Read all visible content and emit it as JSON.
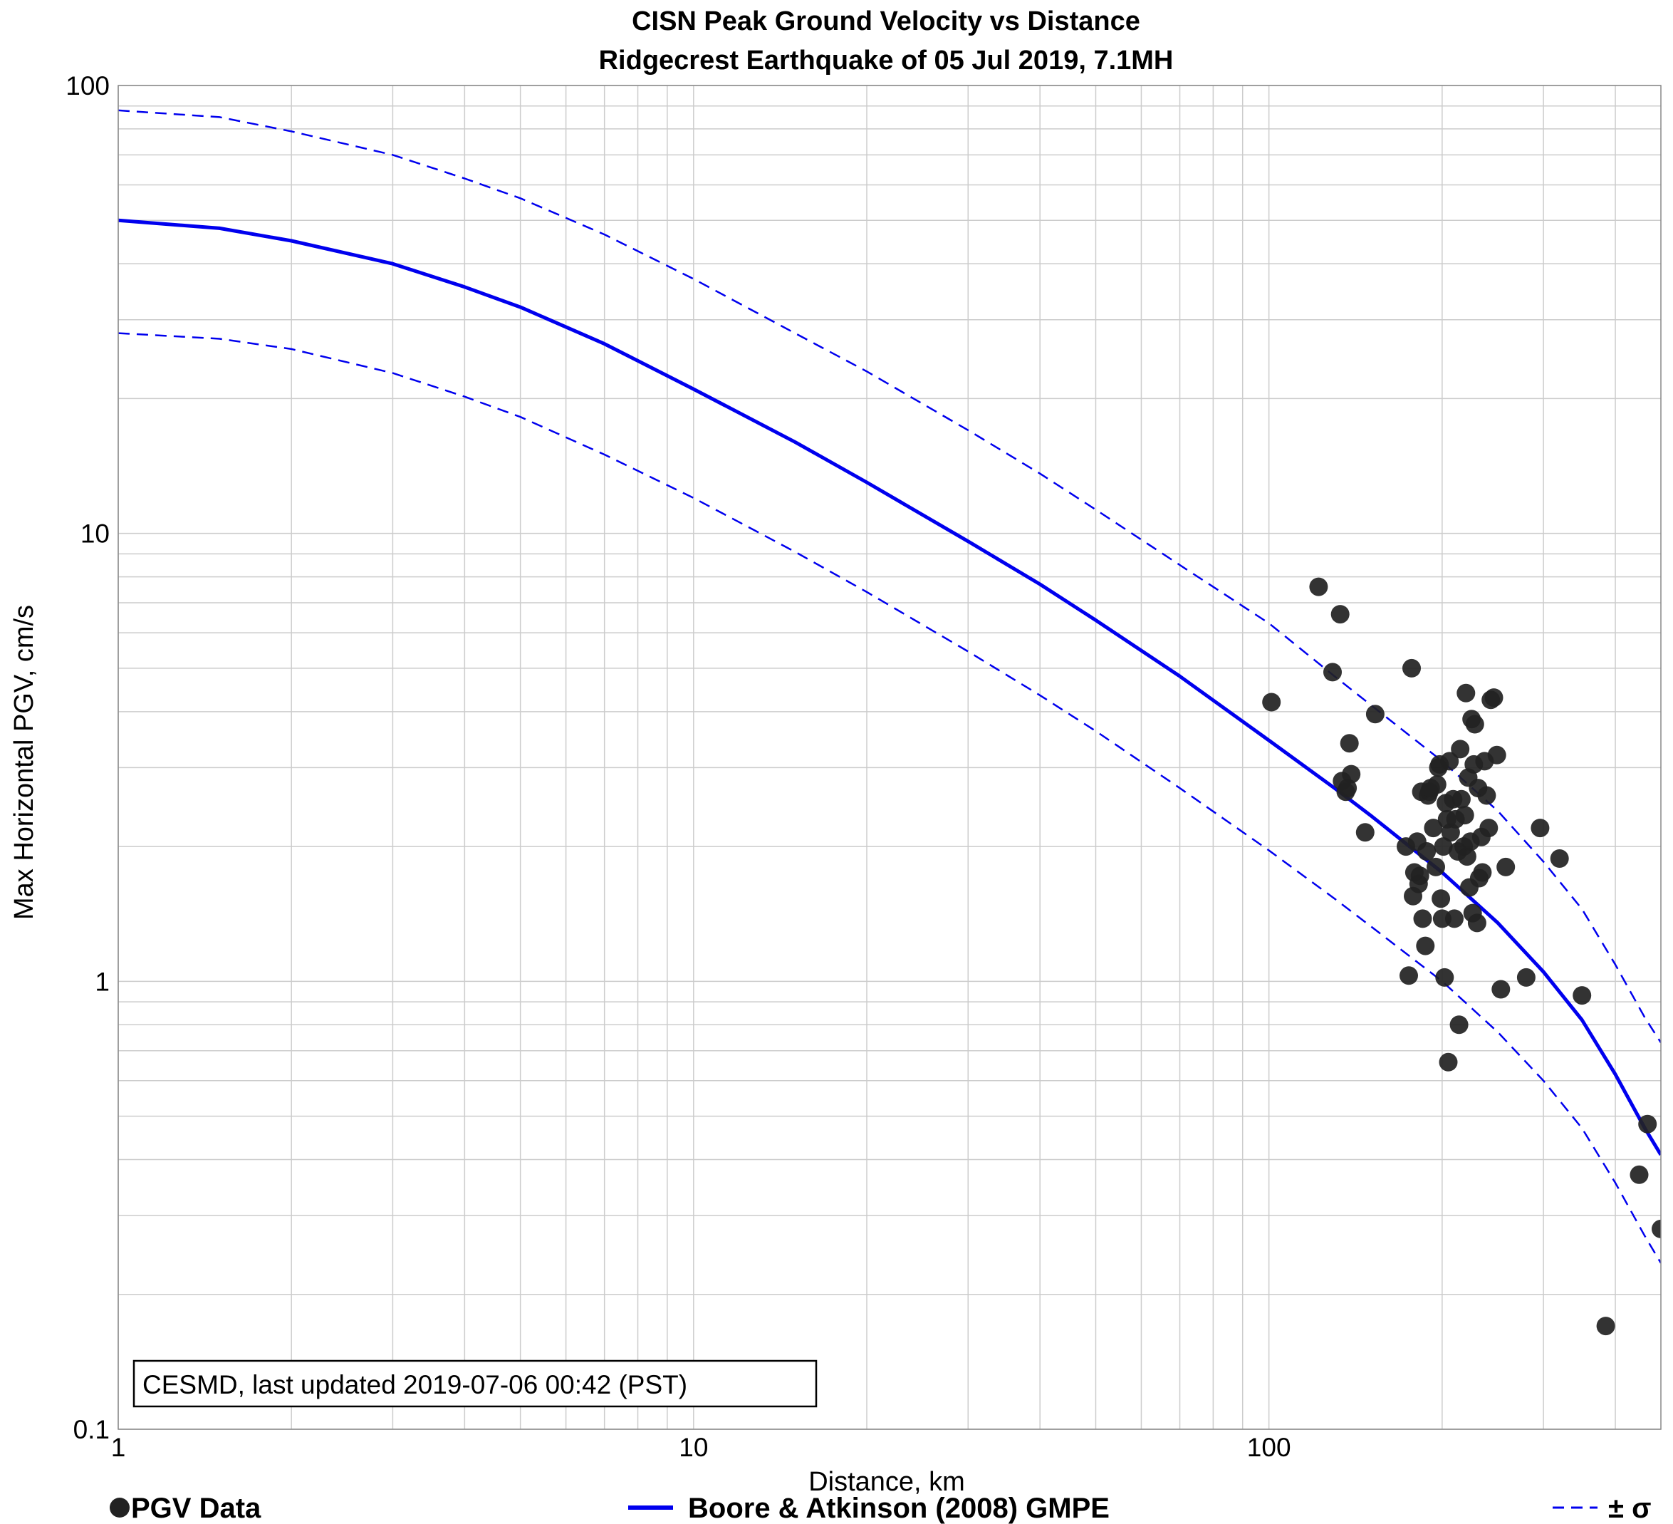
{
  "chart_data": {
    "type": "scatter",
    "title": "CISN Peak Ground Velocity vs Distance",
    "subtitle": "Ridgecrest Earthquake of 05 Jul 2019, 7.1MH",
    "xlabel": "Distance, km",
    "ylabel": "Max Horizontal PGV, cm/s",
    "xscale": "log",
    "yscale": "log",
    "xlim": [
      1,
      480
    ],
    "ylim": [
      0.1,
      100
    ],
    "grid": true,
    "x_ticks": [
      1,
      10,
      100
    ],
    "x_tick_labels": [
      "1",
      "10",
      "100"
    ],
    "y_ticks": [
      0.1,
      1,
      10,
      100
    ],
    "y_tick_labels": [
      "0.1",
      "1",
      "10",
      "100"
    ],
    "annotation": "CESMD, last updated 2019-07-06 00:42 (PST)",
    "legend": {
      "placement": "bottom",
      "entries": [
        {
          "label": "PGV Data",
          "type": "marker"
        },
        {
          "label": "Boore & Atkinson (2008) GMPE",
          "type": "line"
        },
        {
          "label": "± σ",
          "type": "dashed"
        }
      ]
    },
    "colors": {
      "data": "#222222",
      "gmpe": "#0000ee",
      "sigma": "#0000ee",
      "grid": "#cccccc"
    },
    "series": [
      {
        "name": "Boore & Atkinson (2008) GMPE",
        "kind": "line",
        "x": [
          1,
          1.5,
          2,
          3,
          4,
          5,
          7,
          10,
          15,
          20,
          30,
          40,
          50,
          70,
          100,
          130,
          150,
          200,
          250,
          300,
          350,
          400,
          450,
          480
        ],
        "y": [
          50,
          48,
          45,
          40,
          35.5,
          32,
          26.5,
          21,
          16,
          13,
          9.6,
          7.7,
          6.4,
          4.8,
          3.45,
          2.7,
          2.35,
          1.75,
          1.35,
          1.05,
          0.82,
          0.62,
          0.47,
          0.41
        ]
      },
      {
        "name": "+σ",
        "kind": "dashed",
        "x": [
          1,
          1.5,
          2,
          3,
          4,
          5,
          7,
          10,
          15,
          20,
          30,
          40,
          50,
          70,
          100,
          130,
          150,
          200,
          250,
          300,
          350,
          400,
          450,
          480
        ],
        "y": [
          88,
          85,
          79,
          70,
          62,
          56,
          46.5,
          37,
          28,
          23,
          17,
          13.6,
          11.3,
          8.5,
          6.3,
          4.8,
          4.15,
          3.1,
          2.4,
          1.85,
          1.45,
          1.09,
          0.83,
          0.73
        ]
      },
      {
        "name": "-σ",
        "kind": "dashed",
        "x": [
          1,
          1.5,
          2,
          3,
          4,
          5,
          7,
          10,
          15,
          20,
          30,
          40,
          50,
          70,
          100,
          130,
          150,
          200,
          250,
          300,
          350,
          400,
          450,
          480
        ],
        "y": [
          28,
          27.2,
          25.8,
          22.8,
          20.2,
          18.2,
          15,
          12,
          9.1,
          7.4,
          5.45,
          4.35,
          3.62,
          2.7,
          1.96,
          1.53,
          1.33,
          1.0,
          0.77,
          0.6,
          0.47,
          0.355,
          0.27,
          0.235
        ]
      },
      {
        "name": "PGV Data",
        "kind": "scatter",
        "points": [
          [
            101,
            4.2
          ],
          [
            122,
            7.6
          ],
          [
            129,
            4.9
          ],
          [
            133,
            6.6
          ],
          [
            134,
            2.8
          ],
          [
            136,
            2.65
          ],
          [
            137,
            2.7
          ],
          [
            138,
            3.4
          ],
          [
            139,
            2.9
          ],
          [
            147,
            2.15
          ],
          [
            153,
            3.95
          ],
          [
            173,
            2.0
          ],
          [
            175,
            1.03
          ],
          [
            177,
            5.0
          ],
          [
            178,
            1.55
          ],
          [
            179,
            1.75
          ],
          [
            181,
            2.05
          ],
          [
            182,
            1.65
          ],
          [
            183,
            1.72
          ],
          [
            184,
            2.65
          ],
          [
            185,
            1.38
          ],
          [
            187,
            1.2
          ],
          [
            188,
            1.95
          ],
          [
            189,
            2.6
          ],
          [
            190,
            2.65
          ],
          [
            191,
            2.7
          ],
          [
            193,
            2.2
          ],
          [
            195,
            1.8
          ],
          [
            196,
            2.75
          ],
          [
            197,
            3.0
          ],
          [
            198,
            3.05
          ],
          [
            199,
            1.53
          ],
          [
            200,
            1.38
          ],
          [
            201,
            2.0
          ],
          [
            202,
            1.02
          ],
          [
            203,
            2.5
          ],
          [
            204,
            2.3
          ],
          [
            205,
            0.66
          ],
          [
            206,
            3.1
          ],
          [
            207,
            2.15
          ],
          [
            209,
            2.55
          ],
          [
            210,
            1.38
          ],
          [
            211,
            2.3
          ],
          [
            213,
            1.95
          ],
          [
            214,
            0.8
          ],
          [
            215,
            3.3
          ],
          [
            216,
            2.55
          ],
          [
            218,
            2.0
          ],
          [
            219,
            2.35
          ],
          [
            220,
            4.4
          ],
          [
            221,
            1.9
          ],
          [
            222,
            2.85
          ],
          [
            223,
            1.62
          ],
          [
            224,
            2.05
          ],
          [
            225,
            3.85
          ],
          [
            226,
            1.42
          ],
          [
            227,
            3.05
          ],
          [
            228,
            3.75
          ],
          [
            230,
            1.35
          ],
          [
            231,
            2.7
          ],
          [
            232,
            1.7
          ],
          [
            234,
            2.1
          ],
          [
            235,
            1.75
          ],
          [
            237,
            3.1
          ],
          [
            239,
            2.6
          ],
          [
            241,
            2.2
          ],
          [
            243,
            4.25
          ],
          [
            246,
            4.3
          ],
          [
            249,
            3.2
          ],
          [
            253,
            0.96
          ],
          [
            258,
            1.8
          ],
          [
            280,
            1.02
          ],
          [
            296,
            2.2
          ],
          [
            320,
            1.88
          ],
          [
            350,
            0.93
          ],
          [
            385,
            0.17
          ],
          [
            440,
            0.37
          ],
          [
            455,
            0.48
          ],
          [
            480,
            0.28
          ]
        ]
      }
    ]
  }
}
